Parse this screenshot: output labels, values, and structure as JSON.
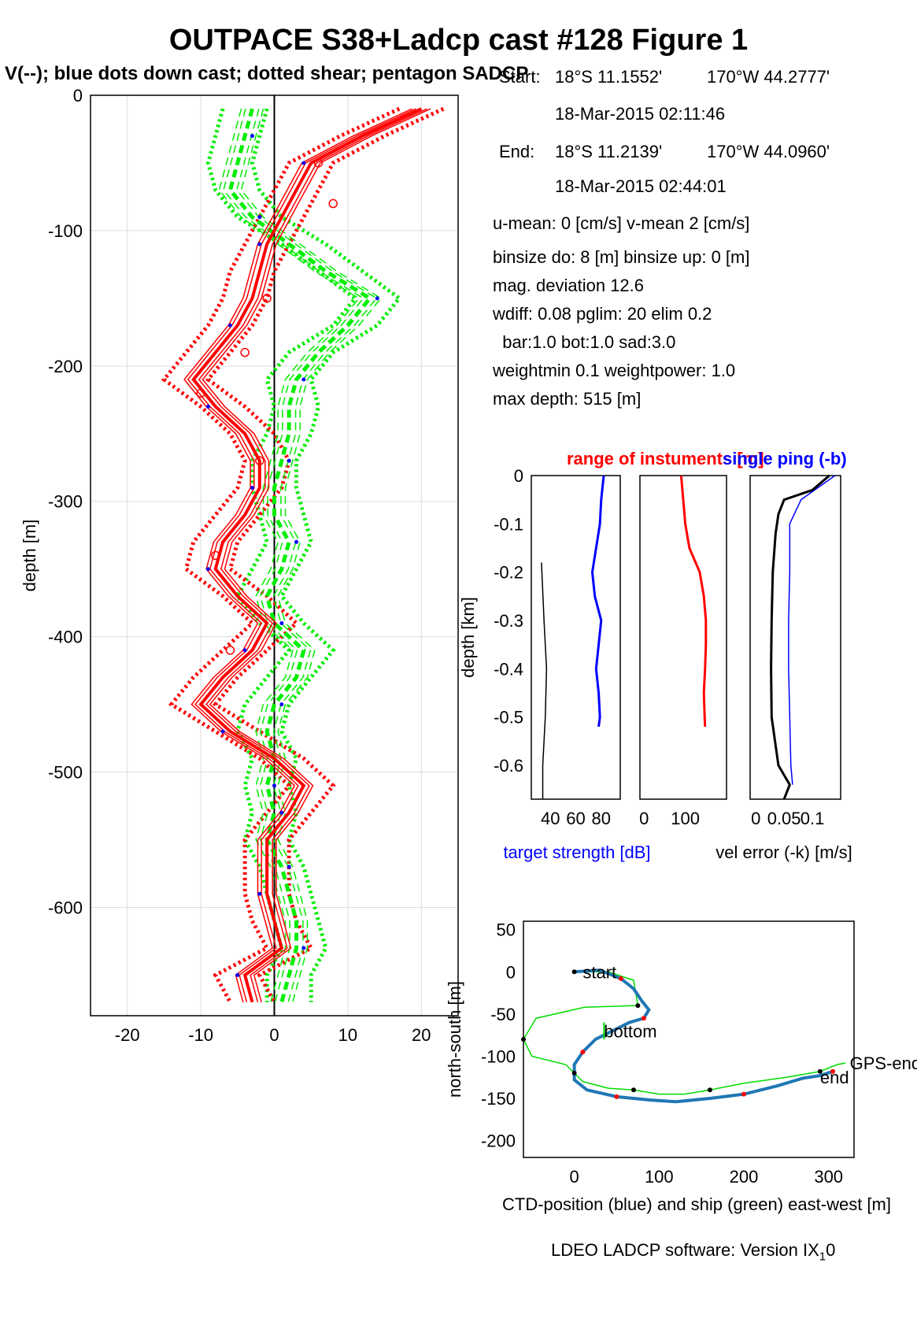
{
  "header": {
    "title": "OUTPACE S38+Ladcp cast #128  Figure 1",
    "subtitle": "V(--); blue dots down cast; dotted shear; pentagon SADCP"
  },
  "info": {
    "start_label": "Start:",
    "start_lat": "18°S 11.1552'",
    "start_lon": "170°W 44.2777'",
    "start_time": "18-Mar-2015 02:11:46",
    "end_label": "End:",
    "end_lat": "18°S 11.2139'",
    "end_lon": "170°W 44.0960'",
    "end_time": "18-Mar-2015 02:44:01",
    "means": "u-mean:   0 [cm/s]    v-mean   2 [cm/s]",
    "binsize": "binsize do: 8 [m]  binsize up:  0 [m]",
    "magdev": "mag. deviation 12.6",
    "wdiff": "wdiff: 0.08  pglim: 20  elim 0.2",
    "bar": "  bar:1.0 bot:1.0 sad:3.0",
    "weight": "weightmin 0.1  weightpower: 1.0",
    "maxdepth": "max depth: 515 [m]"
  },
  "footer": {
    "text": "LDEO LADCP software: Version IX",
    "subscript": "1",
    "suffix": "0"
  },
  "colors": {
    "u": "#ff0000",
    "v": "#00ee00",
    "blue": "#0000ff",
    "ctd": "#1f77b4",
    "ship": "#00dd00",
    "yellow": "#ffff00"
  },
  "chart_data": [
    {
      "type": "line",
      "name": "velocity profile",
      "xlabel": "",
      "ylabel": "depth [m]",
      "xlim": [
        -25,
        25
      ],
      "ylim": [
        -680,
        0
      ],
      "xticks": [
        -20,
        -10,
        0,
        10,
        20
      ],
      "yticks": [
        0,
        -100,
        -200,
        -300,
        -400,
        -500,
        -600
      ],
      "grid": true,
      "depth": [
        -10,
        -30,
        -50,
        -70,
        -90,
        -110,
        -130,
        -150,
        -170,
        -190,
        -210,
        -230,
        -250,
        -270,
        -290,
        -310,
        -330,
        -350,
        -370,
        -390,
        -410,
        -430,
        -450,
        -470,
        -490,
        -510,
        -530,
        -550,
        -570,
        -590,
        -610,
        -630,
        -650,
        -670
      ],
      "u": [
        20,
        12,
        5,
        3,
        1,
        -1,
        -2,
        -3,
        -5,
        -8,
        -11,
        -8,
        -4,
        -2,
        -2,
        -4,
        -7,
        -8,
        -5,
        -1,
        -3,
        -7,
        -10,
        -6,
        0,
        4,
        2,
        -1,
        -1,
        -1,
        0,
        1,
        -4,
        -3
      ],
      "v": [
        -3,
        -4,
        -5,
        -6,
        -3,
        2,
        7,
        13,
        10,
        6,
        3,
        2,
        2,
        1,
        0,
        0,
        2,
        1,
        -1,
        0,
        4,
        3,
        0,
        -1,
        0,
        -1,
        0,
        -1,
        1,
        2,
        3,
        3,
        2,
        1
      ],
      "u_shear": [
        20,
        12,
        5,
        3,
        1,
        -1,
        -3,
        -4,
        -6,
        -9,
        -12,
        -7,
        -3,
        -1,
        -2,
        -5,
        -8,
        -9,
        -4,
        0,
        -4,
        -8,
        -11,
        -5,
        1,
        5,
        2,
        -1,
        -1,
        -1,
        0,
        2,
        -5,
        -3
      ],
      "v_shear": [
        -4,
        -5,
        -6,
        -5,
        -2,
        4,
        9,
        14,
        11,
        5,
        2,
        3,
        2,
        0,
        0,
        1,
        2,
        0,
        -2,
        1,
        5,
        2,
        -1,
        -2,
        0,
        -1,
        0,
        -1,
        1,
        2,
        3,
        4,
        2,
        2
      ],
      "sadcp_depth": [
        -50,
        -80,
        -150,
        -190,
        -220,
        -270,
        -340,
        -410
      ],
      "sadcp_u": [
        6,
        8,
        -1,
        -4,
        -10,
        -2,
        -8,
        -6
      ],
      "sadcp_v": [
        -2,
        -4,
        11,
        3,
        3,
        1,
        2,
        3
      ]
    },
    {
      "type": "line",
      "name": "instrument panel",
      "title_red": "range of instuments [m]",
      "title_blue": "single ping (-b)",
      "ylabel": "depth [km]",
      "xlabel_blue": "target strength [dB]",
      "xlabel": "vel error (-k) [m/s]",
      "ylim": [
        -0.67,
        0
      ],
      "yticks": [
        0,
        -0.1,
        -0.2,
        -0.3,
        -0.4,
        -0.5,
        -0.6
      ],
      "panel1": {
        "xticks": [
          40,
          60,
          80
        ],
        "xlim": [
          25,
          95
        ],
        "black_depth": [
          -0.18,
          -0.3,
          -0.4,
          -0.5,
          -0.6,
          -0.67
        ],
        "black_x": [
          33,
          35,
          37,
          36,
          34,
          34
        ],
        "blue_depth": [
          0,
          -0.05,
          -0.1,
          -0.15,
          -0.2,
          -0.25,
          -0.3,
          -0.35,
          -0.4,
          -0.45,
          -0.5,
          -0.52
        ],
        "blue_x": [
          82,
          80,
          79,
          76,
          73,
          75,
          80,
          78,
          76,
          78,
          79,
          78
        ]
      },
      "panel2": {
        "xticks": [
          0,
          100
        ],
        "xlim": [
          -10,
          200
        ],
        "red_depth": [
          0,
          -0.05,
          -0.1,
          -0.15,
          -0.2,
          -0.25,
          -0.3,
          -0.35,
          -0.4,
          -0.45,
          -0.5,
          -0.52
        ],
        "red_x": [
          90,
          95,
          100,
          110,
          135,
          145,
          150,
          150,
          148,
          145,
          147,
          148
        ]
      },
      "panel3": {
        "xticks": [
          0,
          0.05,
          0.1
        ],
        "xticklabels": [
          "0",
          "0.05",
          "0.1"
        ],
        "xlim": [
          -0.01,
          0.15
        ],
        "black_depth": [
          0,
          -0.03,
          -0.05,
          -0.08,
          -0.12,
          -0.2,
          -0.3,
          -0.4,
          -0.5,
          -0.6,
          -0.64,
          -0.67
        ],
        "black_x": [
          0.13,
          0.1,
          0.05,
          0.04,
          0.035,
          0.03,
          0.028,
          0.027,
          0.028,
          0.04,
          0.06,
          0.05
        ],
        "blue_depth": [
          0,
          -0.05,
          -0.1,
          -0.2,
          -0.3,
          -0.4,
          -0.5,
          -0.6,
          -0.64
        ],
        "blue_x": [
          0.14,
          0.08,
          0.06,
          0.06,
          0.058,
          0.058,
          0.06,
          0.062,
          0.065
        ]
      }
    },
    {
      "type": "line",
      "name": "position",
      "xlabel": "CTD-position (blue) and ship (green) east-west [m]",
      "ylabel": "north-south [m]",
      "xlim": [
        -60,
        330
      ],
      "ylim": [
        -220,
        60
      ],
      "xticks": [
        0,
        100,
        200,
        300
      ],
      "yticks": [
        50,
        0,
        -50,
        -100,
        -150,
        -200
      ],
      "ctd_x": [
        0,
        30,
        55,
        70,
        80,
        88,
        82,
        65,
        45,
        25,
        10,
        0,
        0,
        15,
        50,
        90,
        120,
        160,
        200,
        240,
        270,
        290,
        305
      ],
      "ctd_y": [
        0,
        2,
        -8,
        -20,
        -35,
        -45,
        -55,
        -60,
        -70,
        -80,
        -95,
        -110,
        -128,
        -140,
        -148,
        -152,
        -154,
        -150,
        -145,
        -135,
        -126,
        -123,
        -118
      ],
      "ship_x": [
        0,
        40,
        70,
        75,
        12,
        -45,
        -60,
        -50,
        -10,
        0,
        10,
        40,
        70,
        100,
        130,
        160,
        200,
        250,
        290,
        310,
        320
      ],
      "ship_y": [
        0,
        0,
        -10,
        -40,
        -42,
        -55,
        -80,
        -100,
        -110,
        -120,
        -130,
        -138,
        -140,
        -145,
        -145,
        -140,
        -132,
        -125,
        -118,
        -110,
        -108
      ],
      "labels": [
        {
          "text": "start",
          "x": 10,
          "y": 0
        },
        {
          "text": "bottom",
          "x": 35,
          "y": -70
        },
        {
          "text": "GPS-end",
          "x": 325,
          "y": -108
        },
        {
          "text": "end",
          "x": 290,
          "y": -125
        }
      ]
    }
  ]
}
